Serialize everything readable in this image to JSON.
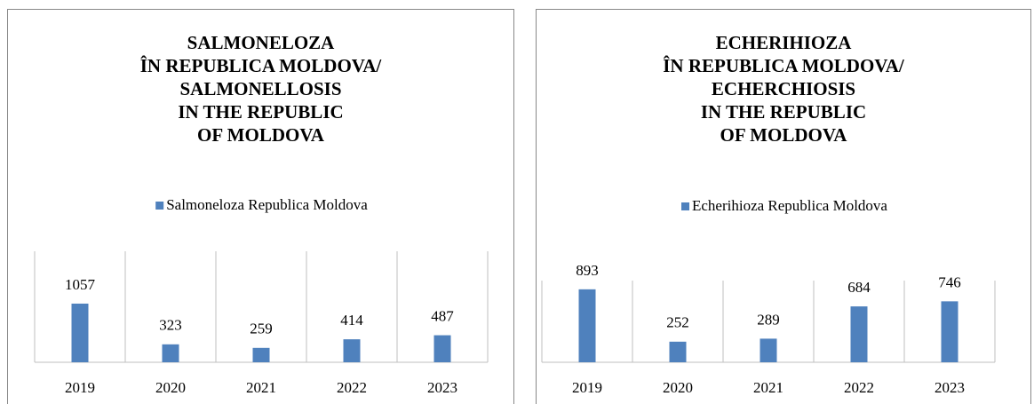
{
  "chart_data": [
    {
      "type": "bar",
      "title": "SALMONELOZA\nÎN REPUBLICA MOLDOVA/\nSALMONELLOSIS\nIN THE REPUBLIC\nOF MOLDOVA",
      "categories": [
        "2019",
        "2020",
        "2021",
        "2022",
        "2023"
      ],
      "series": [
        {
          "name": "Salmoneloza Republica Moldova",
          "color": "#4f81bd",
          "values": [
            1057,
            323,
            259,
            414,
            487
          ]
        }
      ],
      "ylim": [
        0,
        2000
      ],
      "grid": true,
      "legend": "top"
    },
    {
      "type": "bar",
      "title": "ECHERIHIOZA\nÎN REPUBLICA MOLDOVA/\nECHERCHIOSIS\nIN THE REPUBLIC\nOF MOLDOVA",
      "categories": [
        "2019",
        "2020",
        "2021",
        "2022",
        "2023"
      ],
      "series": [
        {
          "name": "Echerihioza Republica Moldova",
          "color": "#4f81bd",
          "values": [
            893,
            252,
            289,
            684,
            746
          ]
        }
      ],
      "ylim": [
        0,
        1000
      ],
      "grid": true,
      "legend": "top"
    }
  ]
}
